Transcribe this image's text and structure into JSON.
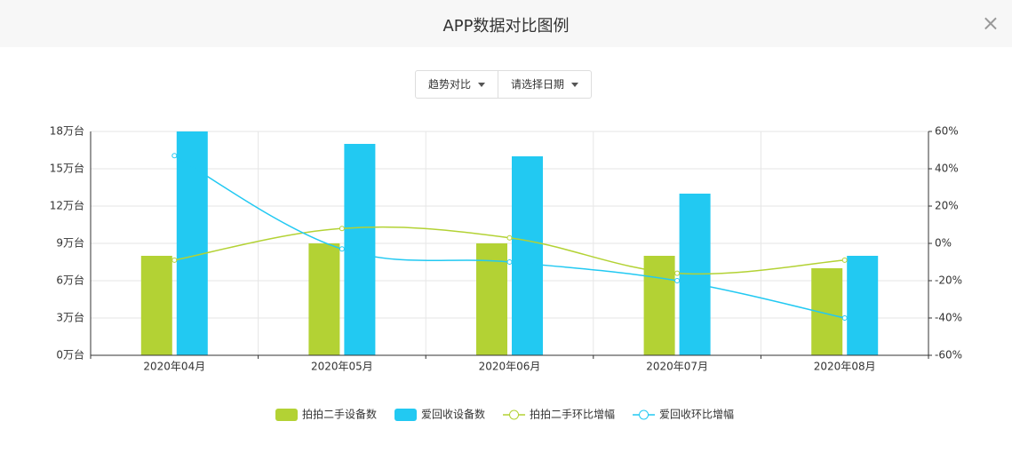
{
  "header": {
    "title": "APP数据对比图例"
  },
  "controls": [
    "趋势对比",
    "请选择日期"
  ],
  "chart_data": {
    "type": "bar",
    "categories": [
      "2020年04月",
      "2020年05月",
      "2020年06月",
      "2020年07月",
      "2020年08月"
    ],
    "series": [
      {
        "name": "拍拍二手设备数",
        "type": "bar",
        "color": "#b3d234",
        "values": [
          8,
          9,
          9,
          8,
          7
        ]
      },
      {
        "name": "爱回收设备数",
        "type": "bar",
        "color": "#22c9f2",
        "values": [
          18,
          17,
          16,
          13,
          8
        ]
      },
      {
        "name": "拍拍二手环比增幅",
        "type": "line",
        "axis": "y2",
        "color": "#b3d234",
        "values": [
          -9,
          8,
          3,
          -16,
          -9
        ]
      },
      {
        "name": "爱回收环比增幅",
        "type": "line",
        "axis": "y2",
        "color": "#22c9f2",
        "values": [
          47,
          -3,
          -10,
          -20,
          -40
        ]
      }
    ],
    "ylim": [
      0,
      18
    ],
    "yticks": [
      {
        "value": 0,
        "label": "0万台"
      },
      {
        "value": 3,
        "label": "3万台"
      },
      {
        "value": 6,
        "label": "6万台"
      },
      {
        "value": 9,
        "label": "9万台"
      },
      {
        "value": 12,
        "label": "12万台"
      },
      {
        "value": 15,
        "label": "15万台"
      },
      {
        "value": 18,
        "label": "18万台"
      }
    ],
    "y2lim": [
      -60,
      60
    ],
    "y2ticks": [
      {
        "value": -60,
        "label": "-60%"
      },
      {
        "value": -40,
        "label": "-40%"
      },
      {
        "value": -20,
        "label": "-20%"
      },
      {
        "value": 0,
        "label": "0%"
      },
      {
        "value": 20,
        "label": "20%"
      },
      {
        "value": 40,
        "label": "40%"
      },
      {
        "value": 60,
        "label": "60%"
      }
    ],
    "grid": true
  }
}
